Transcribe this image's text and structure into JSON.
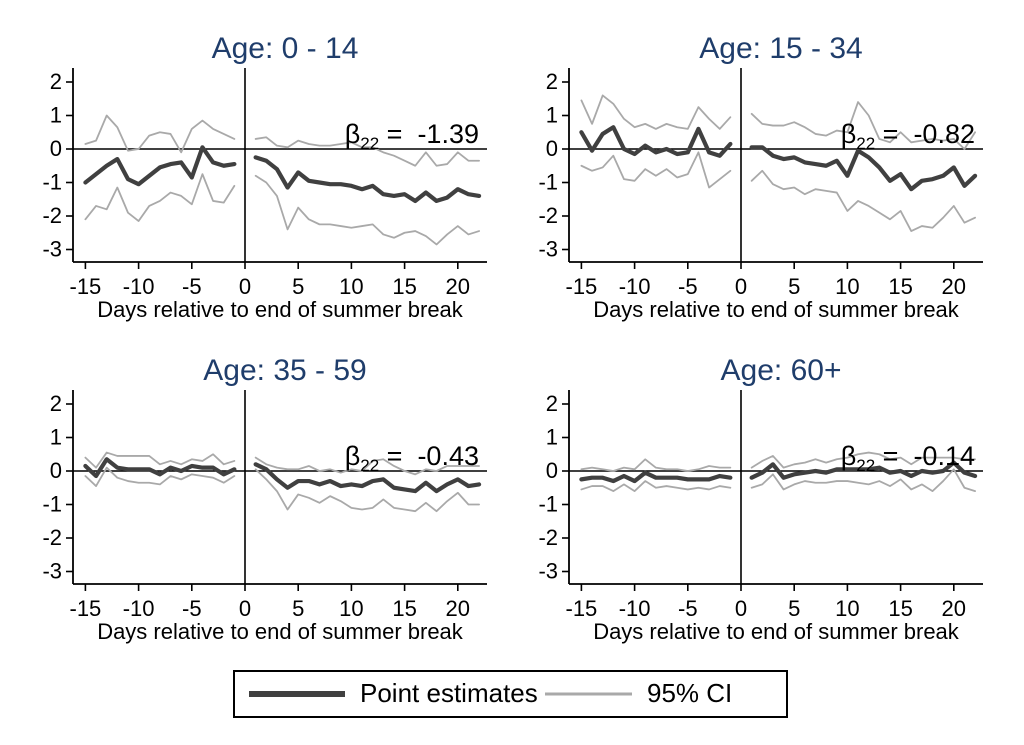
{
  "colors": {
    "estimate": "#404040",
    "ci": "#a9a9a9",
    "title": "#1f3d6b",
    "axis": "#000000",
    "background": "#ffffff"
  },
  "legend": {
    "point_estimates_label": "Point estimates",
    "ci_label": "95% CI"
  },
  "axes": {
    "xlabel": "Days relative to end of summer break",
    "yticks": [
      2,
      1,
      0,
      -1,
      -2,
      -3
    ],
    "xticks": [
      -15,
      -10,
      -5,
      0,
      5,
      10,
      15,
      20
    ],
    "ylim": [
      -3.37,
      2.36
    ],
    "xlim": [
      -16.2,
      22.7
    ],
    "grid": false
  },
  "chart_data": [
    {
      "type": "line",
      "title": "Age: 0 - 14",
      "beta": {
        "symbol": "β",
        "subscript": "22",
        "equals": " =  ",
        "value": "-1.39"
      },
      "pre": {
        "days": [
          -15,
          -14,
          -13,
          -12,
          -11,
          -10,
          -9,
          -8,
          -7,
          -6,
          -5,
          -4,
          -3,
          -2,
          -1
        ],
        "estimate": [
          -1.0,
          -0.75,
          -0.5,
          -0.3,
          -0.9,
          -1.05,
          -0.8,
          -0.55,
          -0.45,
          -0.4,
          -0.85,
          0.05,
          -0.4,
          -0.5,
          -0.45
        ],
        "upper": [
          0.15,
          0.25,
          1.0,
          0.65,
          -0.05,
          0.0,
          0.4,
          0.5,
          0.45,
          -0.1,
          0.6,
          0.85,
          0.6,
          0.45,
          0.3
        ],
        "lower": [
          -2.1,
          -1.7,
          -1.8,
          -1.15,
          -1.9,
          -2.15,
          -1.7,
          -1.55,
          -1.3,
          -1.4,
          -1.65,
          -0.75,
          -1.55,
          -1.6,
          -1.1
        ]
      },
      "post": {
        "days": [
          1,
          2,
          3,
          4,
          5,
          6,
          7,
          8,
          9,
          10,
          11,
          12,
          13,
          14,
          15,
          16,
          17,
          18,
          19,
          20,
          21,
          22
        ],
        "estimate": [
          -0.25,
          -0.35,
          -0.6,
          -1.15,
          -0.7,
          -0.95,
          -1.0,
          -1.05,
          -1.05,
          -1.1,
          -1.2,
          -1.1,
          -1.35,
          -1.4,
          -1.35,
          -1.55,
          -1.3,
          -1.55,
          -1.45,
          -1.2,
          -1.35,
          -1.4
        ],
        "upper": [
          0.3,
          0.35,
          0.1,
          0.05,
          0.25,
          0.15,
          0.1,
          0.1,
          0.15,
          0.2,
          0.05,
          0.05,
          -0.1,
          -0.2,
          -0.35,
          -0.5,
          -0.1,
          -0.5,
          -0.45,
          -0.1,
          -0.35,
          -0.35
        ],
        "lower": [
          -0.8,
          -1.0,
          -1.4,
          -2.4,
          -1.75,
          -2.1,
          -2.25,
          -2.25,
          -2.3,
          -2.35,
          -2.3,
          -2.25,
          -2.55,
          -2.65,
          -2.5,
          -2.45,
          -2.6,
          -2.85,
          -2.55,
          -2.3,
          -2.55,
          -2.45
        ]
      }
    },
    {
      "type": "line",
      "title": "Age: 15 - 34",
      "beta": {
        "symbol": "β",
        "subscript": "22",
        "equals": " =  ",
        "value": "-0.82"
      },
      "pre": {
        "days": [
          -15,
          -14,
          -13,
          -12,
          -11,
          -10,
          -9,
          -8,
          -7,
          -6,
          -5,
          -4,
          -3,
          -2,
          -1
        ],
        "estimate": [
          0.5,
          -0.05,
          0.45,
          0.65,
          0.0,
          -0.15,
          0.1,
          -0.1,
          0.0,
          -0.15,
          -0.1,
          0.6,
          -0.1,
          -0.2,
          0.15
        ],
        "upper": [
          1.45,
          0.75,
          1.6,
          1.35,
          0.9,
          0.65,
          0.75,
          0.6,
          0.75,
          0.65,
          0.6,
          1.25,
          0.9,
          0.6,
          0.95
        ],
        "lower": [
          -0.5,
          -0.65,
          -0.55,
          -0.2,
          -0.9,
          -0.95,
          -0.6,
          -0.8,
          -0.6,
          -0.85,
          -0.75,
          -0.1,
          -1.15,
          -0.9,
          -0.65
        ]
      },
      "post": {
        "days": [
          1,
          2,
          3,
          4,
          5,
          6,
          7,
          8,
          9,
          10,
          11,
          12,
          13,
          14,
          15,
          16,
          17,
          18,
          19,
          20,
          21,
          22
        ],
        "estimate": [
          0.05,
          0.05,
          -0.2,
          -0.3,
          -0.25,
          -0.4,
          -0.45,
          -0.5,
          -0.35,
          -0.8,
          -0.05,
          -0.25,
          -0.55,
          -0.95,
          -0.75,
          -1.2,
          -0.95,
          -0.9,
          -0.8,
          -0.55,
          -1.1,
          -0.8
        ],
        "upper": [
          1.05,
          0.75,
          0.7,
          0.7,
          0.8,
          0.65,
          0.45,
          0.4,
          0.55,
          0.5,
          1.4,
          1.0,
          0.3,
          0.2,
          0.5,
          0.2,
          0.25,
          0.3,
          0.25,
          0.3,
          0.0,
          0.5
        ],
        "lower": [
          -0.95,
          -0.65,
          -1.05,
          -1.2,
          -1.15,
          -1.35,
          -1.2,
          -1.25,
          -1.3,
          -1.85,
          -1.55,
          -1.7,
          -1.9,
          -2.1,
          -1.85,
          -2.45,
          -2.3,
          -2.35,
          -2.05,
          -1.7,
          -2.2,
          -2.05
        ]
      }
    },
    {
      "type": "line",
      "title": "Age: 35 - 59",
      "beta": {
        "symbol": "β",
        "subscript": "22",
        "equals": " =  ",
        "value": "-0.43"
      },
      "pre": {
        "days": [
          -15,
          -14,
          -13,
          -12,
          -11,
          -10,
          -9,
          -8,
          -7,
          -6,
          -5,
          -4,
          -3,
          -2,
          -1
        ],
        "estimate": [
          0.15,
          -0.15,
          0.35,
          0.1,
          0.05,
          0.05,
          0.05,
          -0.1,
          0.1,
          0.0,
          0.15,
          0.1,
          0.1,
          -0.1,
          0.05
        ],
        "upper": [
          0.4,
          0.1,
          0.55,
          0.45,
          0.45,
          0.45,
          0.45,
          0.2,
          0.3,
          0.2,
          0.35,
          0.3,
          0.5,
          0.2,
          0.3
        ],
        "lower": [
          -0.15,
          -0.45,
          0.1,
          -0.2,
          -0.3,
          -0.35,
          -0.35,
          -0.4,
          -0.15,
          -0.25,
          -0.1,
          -0.15,
          -0.2,
          -0.35,
          -0.15
        ]
      },
      "post": {
        "days": [
          1,
          2,
          3,
          4,
          5,
          6,
          7,
          8,
          9,
          10,
          11,
          12,
          13,
          14,
          15,
          16,
          17,
          18,
          19,
          20,
          21,
          22
        ],
        "estimate": [
          0.2,
          0.05,
          -0.25,
          -0.5,
          -0.3,
          -0.3,
          -0.4,
          -0.3,
          -0.45,
          -0.4,
          -0.45,
          -0.3,
          -0.25,
          -0.5,
          -0.55,
          -0.6,
          -0.35,
          -0.6,
          -0.4,
          -0.25,
          -0.45,
          -0.4
        ],
        "upper": [
          0.4,
          0.2,
          0.1,
          0.05,
          0.05,
          0.15,
          0.0,
          0.05,
          -0.05,
          0.05,
          0.0,
          0.3,
          0.35,
          0.15,
          0.0,
          -0.1,
          0.05,
          0.0,
          0.15,
          0.15,
          0.15,
          0.15
        ],
        "lower": [
          0.05,
          -0.25,
          -0.6,
          -1.15,
          -0.7,
          -0.8,
          -0.95,
          -0.75,
          -0.9,
          -1.1,
          -1.15,
          -1.1,
          -0.85,
          -1.1,
          -1.15,
          -1.2,
          -0.95,
          -1.2,
          -0.9,
          -0.65,
          -1.0,
          -1.0
        ]
      }
    },
    {
      "type": "line",
      "title": "Age: 60+",
      "beta": {
        "symbol": "β",
        "subscript": "22",
        "equals": " =  ",
        "value": "-0.14"
      },
      "pre": {
        "days": [
          -15,
          -14,
          -13,
          -12,
          -11,
          -10,
          -9,
          -8,
          -7,
          -6,
          -5,
          -4,
          -3,
          -2,
          -1
        ],
        "estimate": [
          -0.25,
          -0.2,
          -0.2,
          -0.3,
          -0.15,
          -0.3,
          -0.05,
          -0.2,
          -0.2,
          -0.2,
          -0.25,
          -0.25,
          -0.25,
          -0.15,
          -0.2
        ],
        "upper": [
          0.05,
          0.1,
          0.05,
          0.0,
          0.1,
          0.05,
          0.35,
          0.1,
          0.05,
          0.05,
          0.0,
          0.05,
          0.15,
          0.1,
          0.1
        ],
        "lower": [
          -0.55,
          -0.45,
          -0.45,
          -0.6,
          -0.4,
          -0.6,
          -0.3,
          -0.5,
          -0.45,
          -0.5,
          -0.55,
          -0.5,
          -0.55,
          -0.45,
          -0.5
        ]
      },
      "post": {
        "days": [
          1,
          2,
          3,
          4,
          5,
          6,
          7,
          8,
          9,
          10,
          11,
          12,
          13,
          14,
          15,
          16,
          17,
          18,
          19,
          20,
          21,
          22
        ],
        "estimate": [
          -0.2,
          -0.05,
          0.2,
          -0.2,
          -0.1,
          -0.05,
          0.0,
          -0.05,
          0.05,
          0.05,
          0.05,
          0.05,
          0.1,
          -0.05,
          0.0,
          -0.15,
          0.0,
          -0.05,
          0.0,
          0.25,
          -0.05,
          -0.15
        ],
        "upper": [
          0.1,
          0.3,
          0.45,
          0.1,
          0.2,
          0.25,
          0.35,
          0.25,
          0.35,
          0.4,
          0.5,
          0.55,
          0.5,
          0.35,
          0.4,
          0.2,
          0.4,
          0.4,
          0.4,
          0.4,
          0.35,
          0.35
        ],
        "lower": [
          -0.5,
          -0.4,
          -0.1,
          -0.55,
          -0.4,
          -0.3,
          -0.35,
          -0.35,
          -0.3,
          -0.3,
          -0.35,
          -0.4,
          -0.3,
          -0.45,
          -0.25,
          -0.55,
          -0.4,
          -0.6,
          -0.3,
          0.05,
          -0.5,
          -0.6
        ]
      }
    }
  ]
}
